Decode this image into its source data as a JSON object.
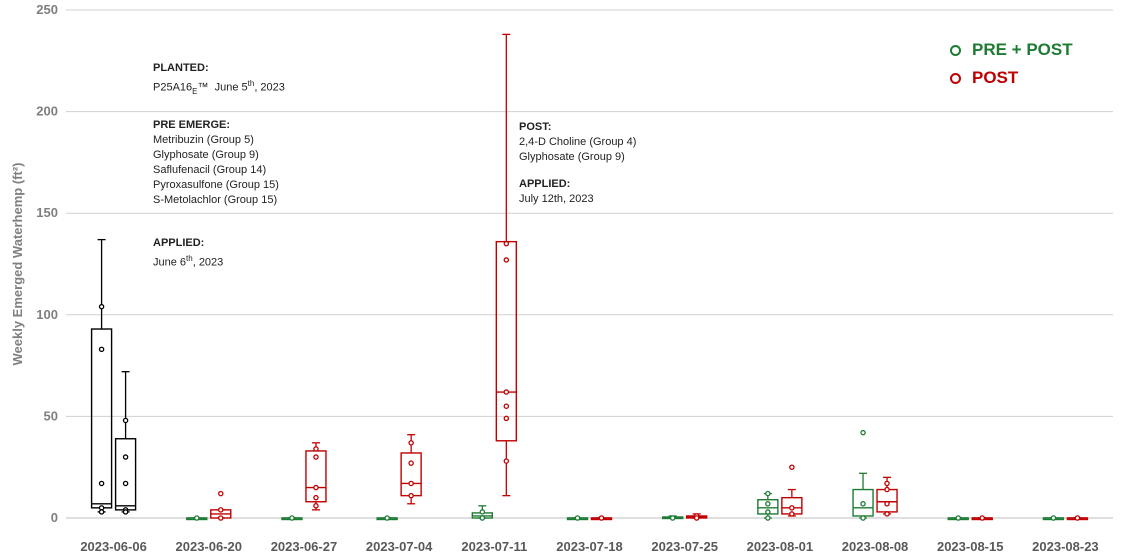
{
  "chart_data": {
    "type": "box",
    "ylabel": "Weekly Emerged Waterhemp (ft²)",
    "ylim": [
      0,
      250
    ],
    "yticks": [
      0,
      50,
      100,
      150,
      200,
      250
    ],
    "grid": true,
    "legend_position": "top-right",
    "categories": [
      "2023-06-06",
      "2023-06-20",
      "2023-06-27",
      "2023-07-04",
      "2023-07-11",
      "2023-07-18",
      "2023-07-25",
      "2023-08-01",
      "2023-08-08",
      "2023-08-15",
      "2023-08-23"
    ],
    "series": [
      {
        "name": "PRE + POST",
        "color": "#1e7b34",
        "pre_period_color": "#000000",
        "boxes": [
          {
            "category": "2023-06-06",
            "min": 3,
            "q1": 5,
            "median": 7,
            "q3": 93,
            "max": 137,
            "points": [
              104,
              83,
              17,
              5,
              3
            ]
          },
          {
            "category": "2023-06-20",
            "min": 0,
            "q1": 0,
            "median": 0,
            "q3": 0,
            "max": 0,
            "points": [
              0
            ]
          },
          {
            "category": "2023-06-27",
            "min": 0,
            "q1": 0,
            "median": 0,
            "q3": 0,
            "max": 0,
            "points": [
              0
            ]
          },
          {
            "category": "2023-07-04",
            "min": 0,
            "q1": 0,
            "median": 0,
            "q3": 0,
            "max": 0,
            "points": [
              0
            ]
          },
          {
            "category": "2023-07-11",
            "min": 0,
            "q1": 0,
            "median": 1,
            "q3": 2.5,
            "max": 6,
            "points": [
              3,
              0
            ]
          },
          {
            "category": "2023-07-18",
            "min": 0,
            "q1": 0,
            "median": 0,
            "q3": 0,
            "max": 0,
            "points": [
              0
            ]
          },
          {
            "category": "2023-07-25",
            "min": 0,
            "q1": 0,
            "median": 0,
            "q3": 0.5,
            "max": 1,
            "points": [
              0
            ]
          },
          {
            "category": "2023-08-01",
            "min": 0,
            "q1": 2,
            "median": 5,
            "q3": 9,
            "max": 12,
            "points": [
              12,
              7,
              3,
              0
            ]
          },
          {
            "category": "2023-08-08",
            "min": 0,
            "q1": 1,
            "median": 5,
            "q3": 14,
            "max": 22,
            "points": [
              42,
              7,
              0
            ]
          },
          {
            "category": "2023-08-15",
            "min": 0,
            "q1": 0,
            "median": 0,
            "q3": 0,
            "max": 0,
            "points": [
              0
            ]
          },
          {
            "category": "2023-08-23",
            "min": 0,
            "q1": 0,
            "median": 0,
            "q3": 0,
            "max": 0,
            "points": [
              0
            ]
          }
        ]
      },
      {
        "name": "POST",
        "color": "#c00000",
        "pre_period_color": "#000000",
        "boxes": [
          {
            "category": "2023-06-06",
            "min": 3,
            "q1": 4,
            "median": 6,
            "q3": 39,
            "max": 72,
            "points": [
              48,
              30,
              17,
              4,
              3
            ]
          },
          {
            "category": "2023-06-20",
            "min": 0,
            "q1": 0,
            "median": 2,
            "q3": 4,
            "max": 4,
            "points": [
              12,
              4,
              0
            ]
          },
          {
            "category": "2023-06-27",
            "min": 4,
            "q1": 8,
            "median": 15,
            "q3": 33,
            "max": 37,
            "points": [
              34,
              30,
              15,
              10,
              6
            ]
          },
          {
            "category": "2023-07-04",
            "min": 7,
            "q1": 11,
            "median": 17,
            "q3": 32,
            "max": 41,
            "points": [
              37,
              27,
              17,
              11
            ]
          },
          {
            "category": "2023-07-11",
            "min": 11,
            "q1": 38,
            "median": 62,
            "q3": 136,
            "max": 238,
            "points": [
              135,
              127,
              62,
              55,
              49,
              28
            ]
          },
          {
            "category": "2023-07-18",
            "min": 0,
            "q1": 0,
            "median": 0,
            "q3": 0,
            "max": 0,
            "points": [
              0
            ]
          },
          {
            "category": "2023-07-25",
            "min": 0,
            "q1": 0,
            "median": 0.5,
            "q3": 1,
            "max": 2,
            "points": [
              1,
              0
            ]
          },
          {
            "category": "2023-08-01",
            "min": 1,
            "q1": 2,
            "median": 5,
            "q3": 10,
            "max": 14,
            "points": [
              25,
              5,
              2
            ]
          },
          {
            "category": "2023-08-08",
            "min": 2,
            "q1": 3,
            "median": 8,
            "q3": 14,
            "max": 20,
            "points": [
              17,
              14,
              7,
              2
            ]
          },
          {
            "category": "2023-08-15",
            "min": 0,
            "q1": 0,
            "median": 0,
            "q3": 0,
            "max": 0,
            "points": [
              0
            ]
          },
          {
            "category": "2023-08-23",
            "min": 0,
            "q1": 0,
            "median": 0,
            "q3": 0,
            "max": 0,
            "points": [
              0
            ]
          }
        ]
      }
    ]
  },
  "legend": {
    "pre_post_label": "PRE + POST",
    "post_label": "POST"
  },
  "annotations": {
    "planted_heading": "PLANTED:",
    "planted_text_prefix": "P25A16",
    "planted_text_sub": "E",
    "planted_text_tm": "™",
    "planted_text_date": "  June 5",
    "planted_text_sup": "th",
    "planted_text_year": ", 2023",
    "pre_emerge_heading": "PRE EMERGE:",
    "pre_emerge_items": [
      "Metribuzin (Group 5)",
      "Glyphosate (Group 9)",
      "Saflufenacil (Group 14)",
      "Pyroxasulfone (Group 15)",
      "S-Metolachlor (Group 15)"
    ],
    "applied1_heading": "APPLIED:",
    "applied1_text": "June 6",
    "applied1_sup": "th",
    "applied1_year": ", 2023",
    "post_heading": "POST:",
    "post_items": [
      "2,4-D Choline (Group 4)",
      "Glyphosate (Group 9)"
    ],
    "applied2_heading": "APPLIED:",
    "applied2_text": "July 12th, 2023"
  }
}
